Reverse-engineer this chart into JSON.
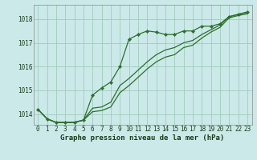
{
  "title": "Graphe pression niveau de la mer (hPa)",
  "background_color": "#cbe9e9",
  "grid_color": "#a0ccbb",
  "line_color": "#2d6e2d",
  "x_ticks": [
    0,
    1,
    2,
    3,
    4,
    5,
    6,
    7,
    8,
    9,
    10,
    11,
    12,
    13,
    14,
    15,
    16,
    17,
    18,
    19,
    20,
    21,
    22,
    23
  ],
  "y_ticks": [
    1014,
    1015,
    1016,
    1017,
    1018
  ],
  "ylim": [
    1013.55,
    1018.6
  ],
  "xlim": [
    -0.5,
    23.5
  ],
  "series1": [
    1014.2,
    1013.8,
    1013.65,
    1013.65,
    1013.65,
    1013.75,
    1014.8,
    1015.1,
    1015.35,
    1016.0,
    1017.15,
    1017.35,
    1017.5,
    1017.45,
    1017.35,
    1017.35,
    1017.5,
    1017.5,
    1017.7,
    1017.7,
    1017.8,
    1018.1,
    1018.2,
    1018.3
  ],
  "series2": [
    1014.2,
    1013.8,
    1013.65,
    1013.65,
    1013.65,
    1013.75,
    1014.25,
    1014.3,
    1014.5,
    1015.2,
    1015.5,
    1015.85,
    1016.2,
    1016.5,
    1016.7,
    1016.8,
    1017.0,
    1017.1,
    1017.35,
    1017.55,
    1017.75,
    1018.1,
    1018.2,
    1018.28
  ],
  "series3": [
    1014.2,
    1013.8,
    1013.65,
    1013.65,
    1013.65,
    1013.75,
    1014.1,
    1014.15,
    1014.3,
    1014.9,
    1015.2,
    1015.55,
    1015.9,
    1016.2,
    1016.4,
    1016.5,
    1016.8,
    1016.9,
    1017.2,
    1017.45,
    1017.65,
    1018.05,
    1018.15,
    1018.22
  ],
  "title_fontsize": 6.5,
  "tick_fontsize": 5.5
}
